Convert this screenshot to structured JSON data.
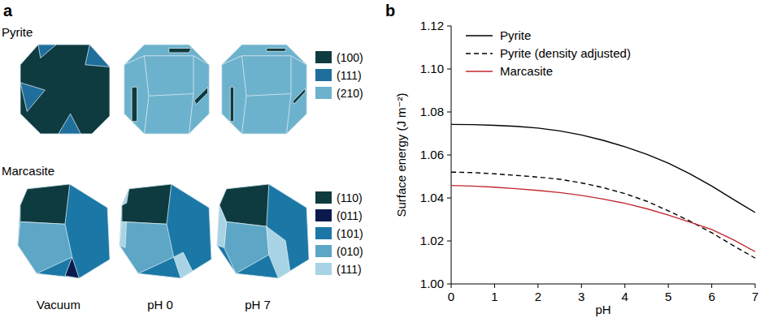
{
  "panel_a": {
    "label": "a",
    "conditions": [
      "Vacuum",
      "pH 0",
      "pH 7"
    ],
    "rows": [
      {
        "name": "Pyrite",
        "facets": [
          {
            "label": "(100)",
            "color": "#0e3b40"
          },
          {
            "label": "(111)",
            "color": "#1f6e9c"
          },
          {
            "label": "(210)",
            "color": "#6db2cd"
          }
        ]
      },
      {
        "name": "Marcasite",
        "facets": [
          {
            "label": "(110)",
            "color": "#0e3b40"
          },
          {
            "label": "(011)",
            "color": "#0b1a4d"
          },
          {
            "label": "(101)",
            "color": "#1b78a6"
          },
          {
            "label": "(010)",
            "color": "#5da6c6"
          },
          {
            "label": "(111)",
            "color": "#a8d3e4"
          }
        ]
      }
    ]
  },
  "chart_data": {
    "label": "b",
    "type": "line",
    "xlabel": "pH",
    "ylabel": "Surface energy (J m⁻²)",
    "x": [
      0,
      0.5,
      1,
      1.5,
      2,
      2.5,
      3,
      3.5,
      4,
      4.5,
      5,
      5.5,
      6,
      6.5,
      7
    ],
    "series": [
      {
        "name": "Pyrite",
        "color": "#000000",
        "line_style": "solid",
        "values": [
          1.0742,
          1.0741,
          1.0738,
          1.0733,
          1.0725,
          1.0712,
          1.0693,
          1.0668,
          1.0638,
          1.0603,
          1.0562,
          1.0512,
          1.0455,
          1.0393,
          1.0332
        ]
      },
      {
        "name": "Pyrite (density adjusted)",
        "color": "#000000",
        "line_style": "dashed",
        "values": [
          1.052,
          1.0518,
          1.0512,
          1.0505,
          1.0497,
          1.0487,
          1.047,
          1.0448,
          1.042,
          1.0385,
          1.034,
          1.0292,
          1.0238,
          1.0178,
          1.012
        ]
      },
      {
        "name": "Marcasite",
        "color": "#c1272d",
        "line_style": "solid",
        "values": [
          1.0458,
          1.0455,
          1.045,
          1.0443,
          1.0435,
          1.0425,
          1.0412,
          1.0395,
          1.0375,
          1.035,
          1.032,
          1.0287,
          1.0253,
          1.0205,
          1.015
        ]
      }
    ],
    "xlim": [
      0,
      7
    ],
    "xticks": [
      0,
      1,
      2,
      3,
      4,
      5,
      6,
      7
    ],
    "ylim": [
      1.0,
      1.12
    ],
    "yticks": [
      {
        "value": 1.0,
        "label": "1.00"
      },
      1.02,
      1.04,
      1.06,
      1.08,
      {
        "value": 1.1,
        "label": "1.10"
      },
      1.12
    ],
    "legend": "upper left",
    "grid": false
  }
}
